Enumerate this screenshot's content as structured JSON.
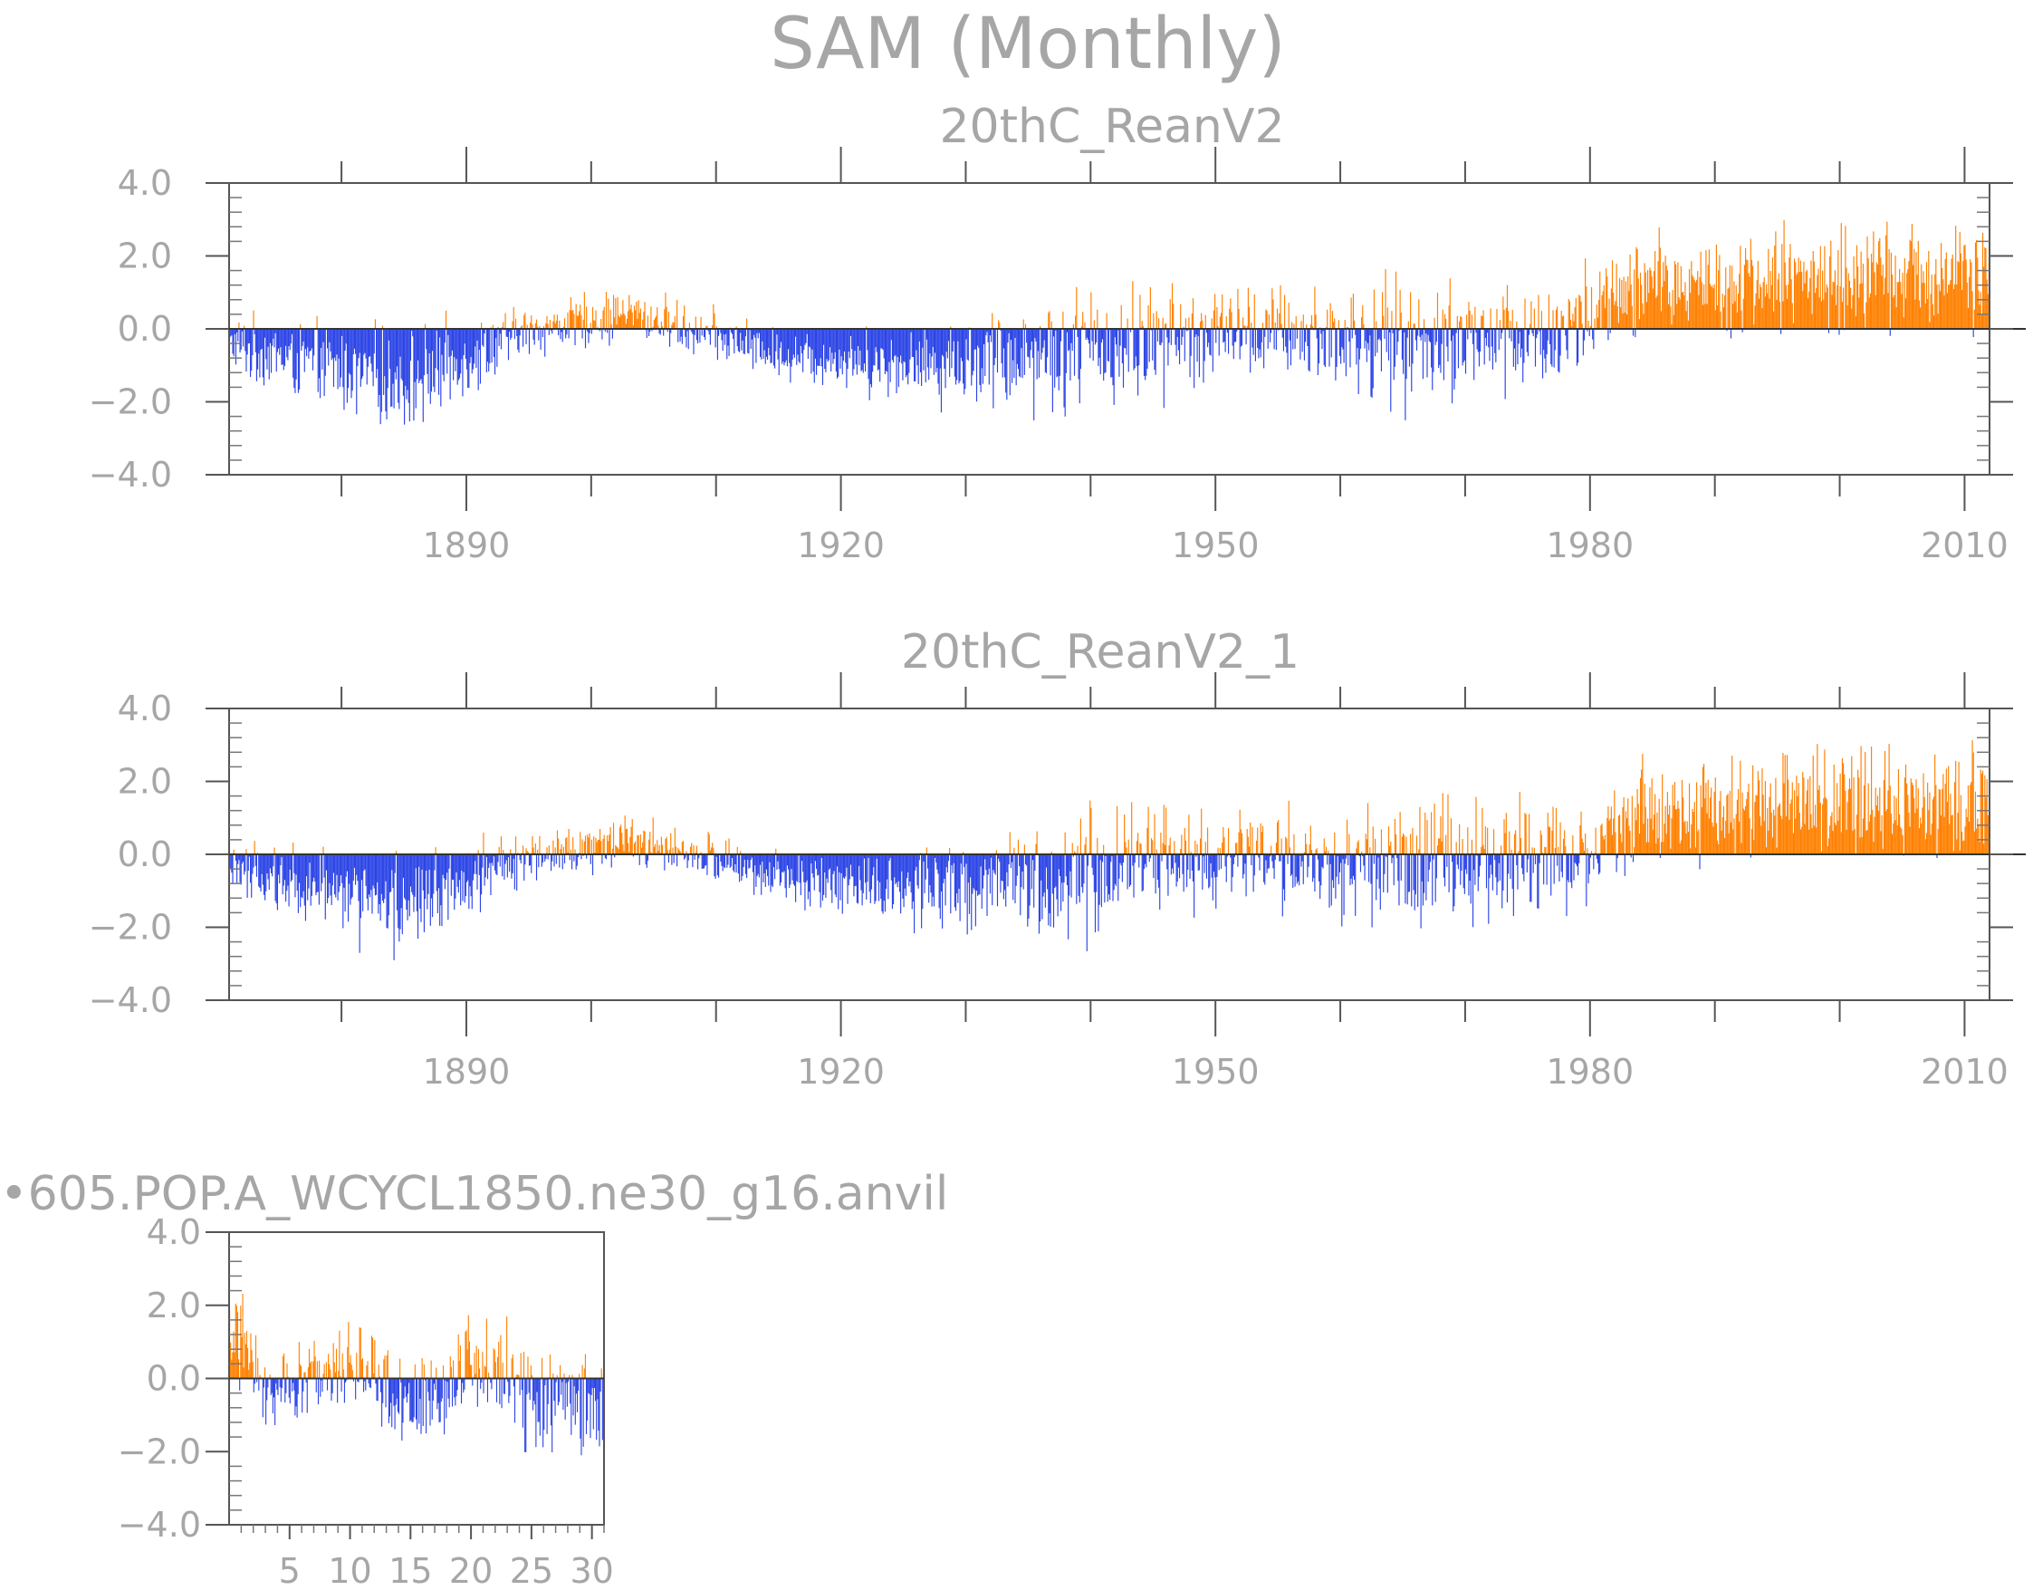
{
  "figure": {
    "title": "SAM (Monthly)",
    "colors": {
      "positive": "#ff8000",
      "negative": "#2b44e6",
      "text": "#a6a6a6"
    }
  },
  "chart_data": [
    {
      "type": "bar",
      "title": "20thC_ReanV2",
      "x_range": [
        1871,
        2012
      ],
      "ylim": [
        -4.0,
        4.0
      ],
      "y_ticks": [
        "4.0",
        "2.0",
        "0.0",
        "−2.0",
        "−4.0"
      ],
      "x_ticks": [
        "1890",
        "1920",
        "1950",
        "1980",
        "2010"
      ],
      "x_tick_values": [
        1890,
        1920,
        1950,
        1980,
        2010
      ],
      "series": [
        {
          "values_note_decades": "monthly anomalies",
          "decadal_envelope": [
            {
              "x": 1871,
              "min": -1.5,
              "max": 0.6
            },
            {
              "x": 1885,
              "min": -3.3,
              "max": 0.3
            },
            {
              "x": 1895,
              "min": -1.0,
              "max": 0.9
            },
            {
              "x": 1903,
              "min": -0.5,
              "max": 1.4
            },
            {
              "x": 1915,
              "min": -1.6,
              "max": 0.2
            },
            {
              "x": 1926,
              "min": -2.3,
              "max": 0.3
            },
            {
              "x": 1940,
              "min": -2.9,
              "max": 1.8
            },
            {
              "x": 1952,
              "min": -1.8,
              "max": 1.6
            },
            {
              "x": 1964,
              "min": -2.6,
              "max": 1.8
            },
            {
              "x": 1977,
              "min": -2.4,
              "max": 2.0
            },
            {
              "x": 1985,
              "min": -0.5,
              "max": 3.0
            },
            {
              "x": 2010,
              "min": -0.5,
              "max": 3.5
            }
          ]
        }
      ]
    },
    {
      "type": "bar",
      "title": "20thC_ReanV2_1",
      "x_range": [
        1871,
        2012
      ],
      "ylim": [
        -4.0,
        4.0
      ],
      "y_ticks": [
        "4.0",
        "2.0",
        "0.0",
        "−2.0",
        "−4.0"
      ],
      "x_ticks": [
        "1890",
        "1920",
        "1950",
        "1980",
        "2010"
      ],
      "x_tick_values": [
        1890,
        1920,
        1950,
        1980,
        2010
      ],
      "series": [
        {
          "decadal_envelope": [
            {
              "x": 1871,
              "min": -1.5,
              "max": 0.6
            },
            {
              "x": 1885,
              "min": -3.3,
              "max": 0.3
            },
            {
              "x": 1895,
              "min": -1.0,
              "max": 0.9
            },
            {
              "x": 1903,
              "min": -0.5,
              "max": 1.4
            },
            {
              "x": 1915,
              "min": -1.6,
              "max": 0.2
            },
            {
              "x": 1926,
              "min": -2.3,
              "max": 0.3
            },
            {
              "x": 1940,
              "min": -2.9,
              "max": 1.8
            },
            {
              "x": 1952,
              "min": -1.8,
              "max": 1.6
            },
            {
              "x": 1964,
              "min": -2.6,
              "max": 1.8
            },
            {
              "x": 1977,
              "min": -2.4,
              "max": 2.0
            },
            {
              "x": 1985,
              "min": -0.5,
              "max": 3.0
            },
            {
              "x": 2010,
              "min": -0.5,
              "max": 3.5
            }
          ]
        }
      ]
    },
    {
      "type": "bar",
      "title": "•605.POP.A_WCYCL1850.ne30_g16.anvil",
      "x_range": [
        0,
        31
      ],
      "ylim": [
        -4.0,
        4.0
      ],
      "y_ticks": [
        "4.0",
        "2.0",
        "0.0",
        "−2.0",
        "−4.0"
      ],
      "x_ticks": [
        "5",
        "10",
        "15",
        "20",
        "25",
        "30"
      ],
      "x_tick_values": [
        5,
        10,
        15,
        20,
        25,
        30
      ],
      "series": [
        {
          "decadal_envelope": [
            {
              "x": 0.5,
              "min": -0.2,
              "max": 3.1
            },
            {
              "x": 3,
              "min": -1.8,
              "max": 1.0
            },
            {
              "x": 10,
              "min": -1.2,
              "max": 2.0
            },
            {
              "x": 15,
              "min": -2.5,
              "max": 0.8
            },
            {
              "x": 20,
              "min": -1.5,
              "max": 2.2
            },
            {
              "x": 27,
              "min": -3.0,
              "max": 1.6
            },
            {
              "x": 30,
              "min": -2.4,
              "max": 1.3
            }
          ]
        }
      ]
    }
  ]
}
